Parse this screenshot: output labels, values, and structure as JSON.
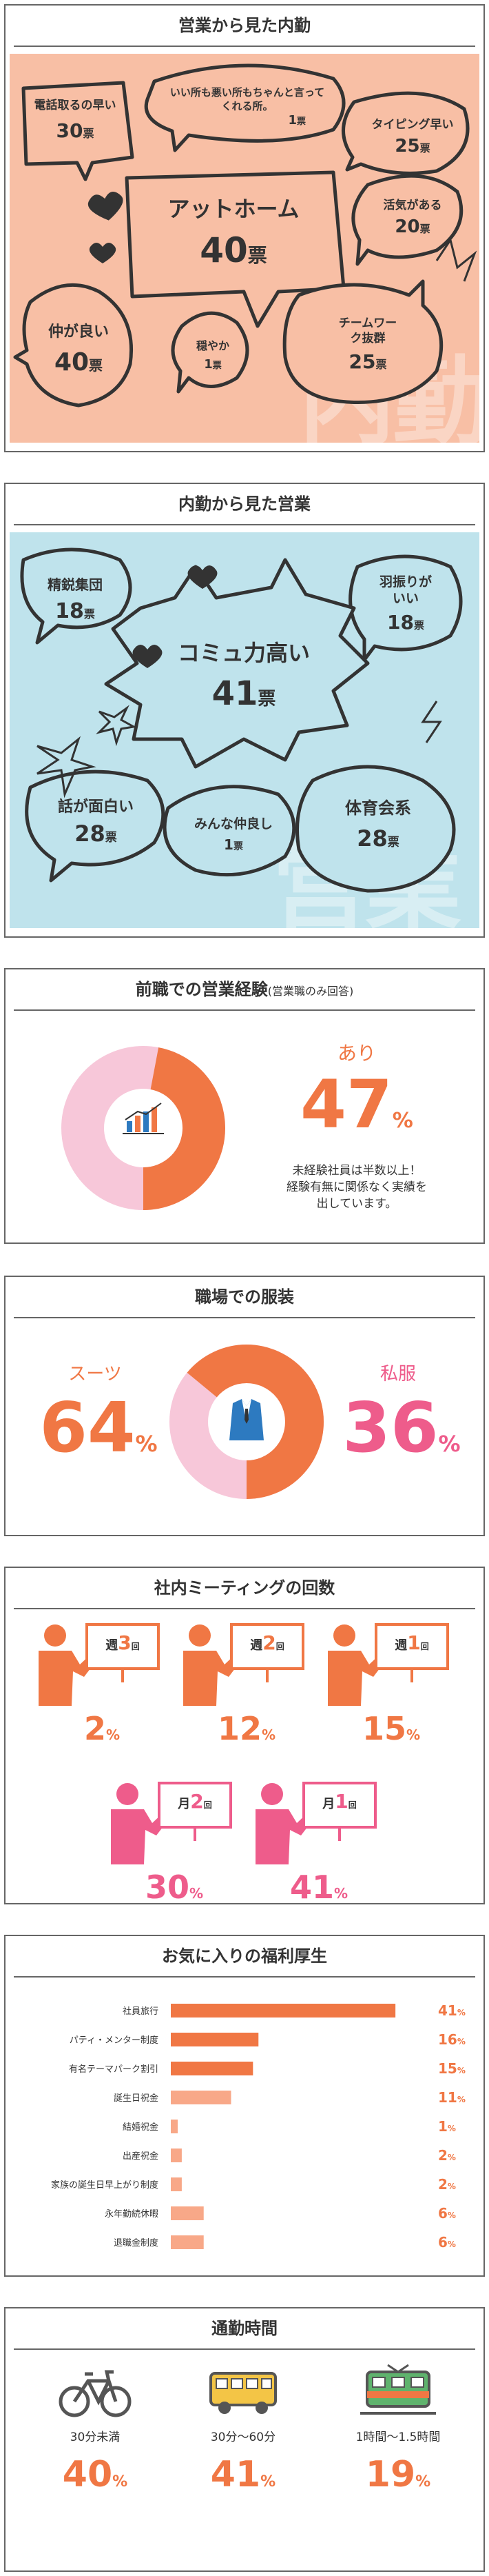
{
  "colors": {
    "salmon": "#F8BFA5",
    "lightblue": "#BFE3EC",
    "orange": "#F07744",
    "pink": "#EE5C8B",
    "lightpink": "#F7C7D9",
    "lightorange": "#F8A888"
  },
  "sec1": {
    "title": "営業から見た内勤",
    "watermark": "内勤",
    "bubbles": [
      {
        "label": "電話取るの早い",
        "count": "30",
        "unit": "票"
      },
      {
        "label": "いい所も悪い所もちゃんと言ってくれる所。",
        "count": "1",
        "unit": "票"
      },
      {
        "label": "タイピング早い",
        "count": "25",
        "unit": "票"
      },
      {
        "label": "アットホーム",
        "count": "40",
        "unit": "票"
      },
      {
        "label": "活気がある",
        "count": "20",
        "unit": "票"
      },
      {
        "label": "仲が良い",
        "count": "40",
        "unit": "票"
      },
      {
        "label": "穏やか",
        "count": "1",
        "unit": "票"
      },
      {
        "label": "チームワーク抜群",
        "count": "25",
        "unit": "票"
      }
    ]
  },
  "sec2": {
    "title": "内勤から見た営業",
    "watermark": "営業",
    "bubbles": [
      {
        "label": "精鋭集団",
        "count": "18",
        "unit": "票"
      },
      {
        "label": "羽振りがいい",
        "count": "18",
        "unit": "票"
      },
      {
        "label": "コミュ力高い",
        "count": "41",
        "unit": "票"
      },
      {
        "label": "話が面白い",
        "count": "28",
        "unit": "票"
      },
      {
        "label": "みんな仲良し",
        "count": "1",
        "unit": "票"
      },
      {
        "label": "体育会系",
        "count": "28",
        "unit": "票"
      }
    ]
  },
  "sec3": {
    "title": "前職での営業経験",
    "title_note": "(営業職のみ回答)",
    "answer": "あり",
    "value": "47",
    "percent_sign": "%",
    "fraction": 0.47,
    "note1": "未経験社員は半数以上！",
    "note2": "経験有無に関係なく実績を",
    "note3": "出しています。"
  },
  "sec4": {
    "title": "職場での服装",
    "left_label": "スーツ",
    "left_value": "64",
    "right_label": "私服",
    "right_value": "36",
    "percent_sign": "%",
    "fraction_suit": 0.64
  },
  "sec5": {
    "title": "社内ミーティングの回数",
    "items": [
      {
        "period": "週",
        "times": "3",
        "unit": "回",
        "value": "2",
        "pct": "%"
      },
      {
        "period": "週",
        "times": "2",
        "unit": "回",
        "value": "12",
        "pct": "%"
      },
      {
        "period": "週",
        "times": "1",
        "unit": "回",
        "value": "15",
        "pct": "%"
      },
      {
        "period": "月",
        "times": "2",
        "unit": "回",
        "value": "30",
        "pct": "%"
      },
      {
        "period": "月",
        "times": "1",
        "unit": "回",
        "value": "41",
        "pct": "%"
      }
    ]
  },
  "sec6": {
    "title": "お気に入りの福利厚生",
    "chart_data": {
      "type": "bar",
      "categories": [
        "社員旅行",
        "パティ・メンター制度",
        "有名テーマパーク割引",
        "誕生日祝金",
        "結婚祝金",
        "出産祝金",
        "家族の誕生日早上がり制度",
        "永年勤続休暇",
        "退職金制度"
      ],
      "values": [
        41,
        16,
        15,
        11,
        1,
        2,
        2,
        6,
        6
      ],
      "unit": "%",
      "orientation": "horizontal",
      "xlim": [
        0,
        44
      ]
    }
  },
  "sec7": {
    "title": "通勤時間",
    "items": [
      {
        "icon": "bicycle-icon",
        "label": "30分未満",
        "value": "40",
        "pct": "%"
      },
      {
        "icon": "bus-icon",
        "label": "30分〜60分",
        "value": "41",
        "pct": "%"
      },
      {
        "icon": "train-icon",
        "label": "1時間〜1.5時間",
        "value": "19",
        "pct": "%"
      }
    ]
  }
}
